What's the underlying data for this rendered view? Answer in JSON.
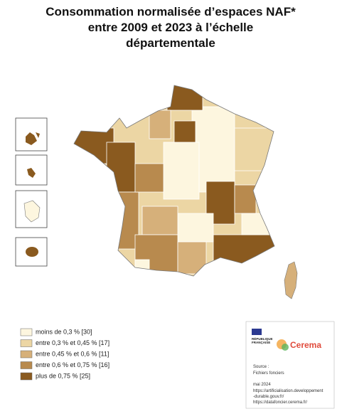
{
  "title": [
    "Consommation normalisée d’espaces NAF*",
    "entre 2009 et 2023 à l’échelle",
    "départementale"
  ],
  "legend": {
    "items": [
      {
        "label": "moins de 0,3 % [30]",
        "color": "#fdf6df"
      },
      {
        "label": "entre 0,3 % et 0,45 % [17]",
        "color": "#ecd6a4"
      },
      {
        "label": "entre 0,45 % et 0,6 % [11]",
        "color": "#d6b07a"
      },
      {
        "label": "entre 0,6 % et 0,75 % [16]",
        "color": "#b88a4e"
      },
      {
        "label": "plus de 0,75 % [25]",
        "color": "#8a5a1f"
      }
    ]
  },
  "credits": {
    "republic": [
      "RÉPUBLIQUE",
      "FRANÇAISE"
    ],
    "brand": "Cerema",
    "source_label": "Source :",
    "source": "Fichiers fonciers",
    "date": "mai 2024",
    "links": [
      "https://artificialisation.developpement",
      "-durable.gouv.fr/",
      "https://datafoncier.cerema.fr/"
    ]
  }
}
